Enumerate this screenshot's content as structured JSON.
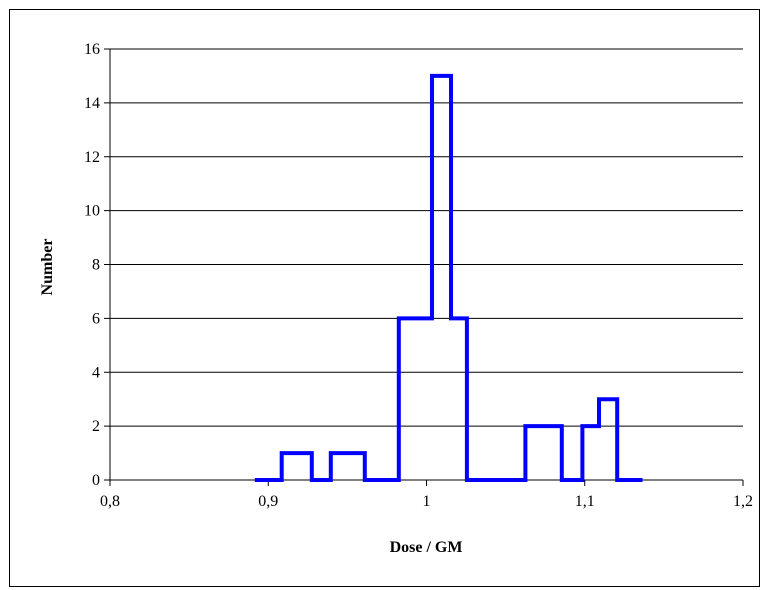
{
  "chart_data": {
    "type": "line",
    "title": "",
    "xlabel": "Dose / GM",
    "ylabel": "Number",
    "xlim": [
      0.8,
      1.2
    ],
    "ylim": [
      0,
      16
    ],
    "x_ticks": [
      "0,8",
      "0,9",
      "1",
      "1,1",
      "1,2"
    ],
    "x_tick_values": [
      0.8,
      0.9,
      1.0,
      1.1,
      1.2
    ],
    "y_ticks": [
      "0",
      "2",
      "4",
      "6",
      "8",
      "10",
      "12",
      "14",
      "16"
    ],
    "y_tick_values": [
      0,
      2,
      4,
      6,
      8,
      10,
      12,
      14,
      16
    ],
    "grid": "horizontal",
    "line_color": "#0000ff",
    "series": [
      {
        "style": "step",
        "points": [
          [
            0.8915,
            0
          ],
          [
            0.9085,
            0
          ],
          [
            0.9085,
            1
          ],
          [
            0.9275,
            1
          ],
          [
            0.9275,
            0
          ],
          [
            0.9395,
            0
          ],
          [
            0.9395,
            1
          ],
          [
            0.961,
            1
          ],
          [
            0.961,
            0
          ],
          [
            0.9825,
            0
          ],
          [
            0.9825,
            6
          ],
          [
            1.0035,
            6
          ],
          [
            1.0035,
            15
          ],
          [
            1.0155,
            15
          ],
          [
            1.0155,
            6
          ],
          [
            1.0255,
            6
          ],
          [
            1.0255,
            0
          ],
          [
            1.0625,
            0
          ],
          [
            1.0625,
            2
          ],
          [
            1.0855,
            2
          ],
          [
            1.0855,
            0
          ],
          [
            1.0985,
            0
          ],
          [
            1.0985,
            2
          ],
          [
            1.109,
            2
          ],
          [
            1.109,
            3
          ],
          [
            1.1205,
            3
          ],
          [
            1.1205,
            0
          ],
          [
            1.1365,
            0
          ]
        ]
      }
    ]
  }
}
